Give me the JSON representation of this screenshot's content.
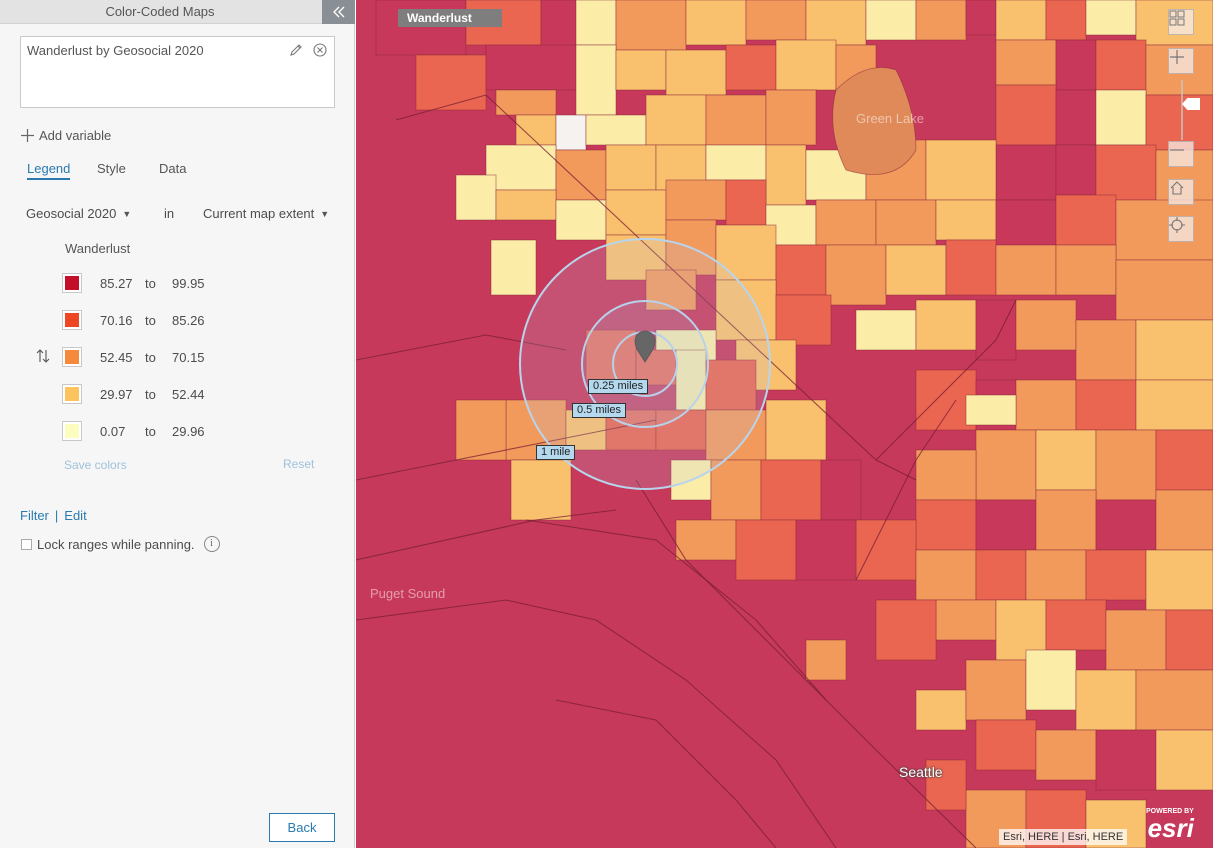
{
  "panel": {
    "title": "Color-Coded Maps",
    "map_title": "Wanderlust by Geosocial 2020",
    "add_variable_label": "Add variable",
    "tabs": [
      {
        "label": "Legend",
        "active": true
      },
      {
        "label": "Style",
        "active": false
      },
      {
        "label": "Data",
        "active": false
      }
    ],
    "dataset": "Geosocial 2020",
    "in_word": "in",
    "extent": "Current map extent",
    "legend_title": "Wanderlust",
    "legend_rows": [
      {
        "min": "85.27",
        "to": "to",
        "max": "99.95",
        "color": "#c40f2a"
      },
      {
        "min": "70.16",
        "to": "to",
        "max": "85.26",
        "color": "#ec4622"
      },
      {
        "min": "52.45",
        "to": "to",
        "max": "70.15",
        "color": "#f7893c"
      },
      {
        "min": "29.97",
        "to": "to",
        "max": "52.44",
        "color": "#fdc45e"
      },
      {
        "min": "0.07",
        "to": "to",
        "max": "29.96",
        "color": "#fefdc0"
      }
    ],
    "save_colors_label": "Save colors",
    "reset_label": "Reset",
    "filter_label": "Filter",
    "separator": "|",
    "edit_label": "Edit",
    "lock_label": "Lock ranges while panning.",
    "info_glyph": "i",
    "back_label": "Back"
  },
  "map": {
    "layer_title": "Wanderlust",
    "ring_labels": [
      "0.25 miles",
      "0.5 miles",
      "1 mile"
    ],
    "places": {
      "lake": "Green Lake",
      "sound": "Puget Sound",
      "city": "Seattle"
    },
    "attribution": "Esri, HERE | Esri, HERE",
    "logo_powered": "POWERED BY",
    "logo_brand": "esri",
    "controls": [
      "basemap-gallery-icon",
      "zoom-in-icon",
      "zoom-out-icon",
      "home-icon",
      "locate-icon"
    ]
  },
  "colors": {
    "accent": "#2a7ab0",
    "class1": "#c8385a",
    "class2": "#ea6650",
    "class3": "#f2995c",
    "class4": "#f9c06e",
    "class5": "#fbeca8"
  }
}
